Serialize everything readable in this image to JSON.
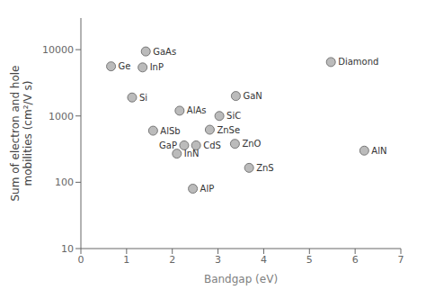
{
  "chart_data": {
    "type": "scatter",
    "x": [
      0.66,
      1.42,
      1.35,
      1.12,
      2.16,
      3.39,
      1.58,
      2.26,
      2.52,
      2.1,
      2.82,
      3.37,
      3.03,
      2.45,
      3.68,
      6.2,
      5.47
    ],
    "values": [
      5600,
      9400,
      5400,
      1900,
      1200,
      2000,
      600,
      360,
      360,
      270,
      620,
      380,
      1000,
      80,
      165,
      300,
      6500
    ],
    "labels": [
      "Ge",
      "GaAs",
      "InP",
      "Si",
      "AlAs",
      "GaN",
      "AlSb",
      "GaP",
      "CdS",
      "InN",
      "ZnSe",
      "ZnO",
      "SiC",
      "AlP",
      "ZnS",
      "AlN",
      "Diamond"
    ],
    "color": "#bbbbbb",
    "xlabel": "Bandgap (eV)",
    "ylabel": "Sum of electron and hole\nmobilities (cm²/V s)",
    "xlim": [
      0,
      7
    ],
    "ylim": [
      10,
      30000
    ],
    "xticks": [
      0,
      1,
      2,
      3,
      4,
      5,
      6,
      7
    ],
    "yticks": [
      10,
      100,
      1000,
      10000
    ],
    "log": "y",
    "grid": false
  }
}
